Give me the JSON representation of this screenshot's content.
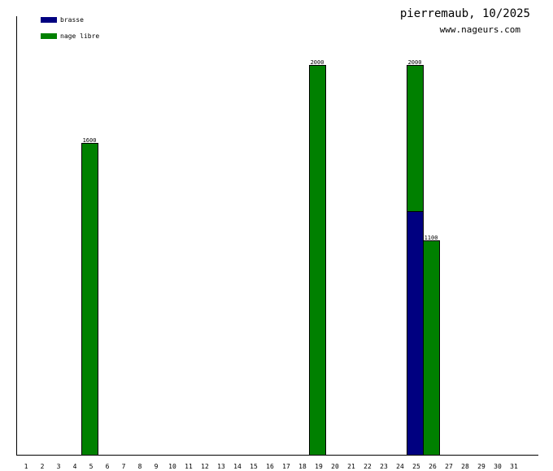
{
  "chart_data": {
    "type": "bar",
    "stacked": true,
    "title": "pierremaub, 10/2025",
    "subtitle": "www.nageurs.com",
    "legend_position": "top-left",
    "categories": [
      "1",
      "2",
      "3",
      "4",
      "5",
      "6",
      "7",
      "8",
      "9",
      "10",
      "11",
      "12",
      "13",
      "14",
      "15",
      "16",
      "17",
      "18",
      "19",
      "20",
      "21",
      "22",
      "23",
      "24",
      "25",
      "26",
      "27",
      "28",
      "29",
      "30",
      "31"
    ],
    "series": [
      {
        "name": "brasse",
        "color": "#000080",
        "values": [
          0,
          0,
          0,
          0,
          0,
          0,
          0,
          0,
          0,
          0,
          0,
          0,
          0,
          0,
          0,
          0,
          0,
          0,
          0,
          0,
          0,
          0,
          0,
          0,
          1250,
          0,
          0,
          0,
          0,
          0,
          0
        ]
      },
      {
        "name": "nage libre",
        "color": "#008000",
        "values": [
          0,
          0,
          0,
          0,
          1600,
          0,
          0,
          0,
          0,
          0,
          0,
          0,
          0,
          0,
          0,
          0,
          0,
          0,
          2000,
          0,
          0,
          0,
          0,
          0,
          750,
          1100,
          0,
          0,
          0,
          0,
          0
        ]
      }
    ],
    "totals": [
      0,
      0,
      0,
      0,
      1600,
      0,
      0,
      0,
      0,
      0,
      0,
      0,
      0,
      0,
      0,
      0,
      0,
      0,
      2000,
      0,
      0,
      0,
      0,
      0,
      2000,
      1100,
      0,
      0,
      0,
      0,
      0
    ],
    "ylim": [
      0,
      2250
    ],
    "grid": false
  }
}
